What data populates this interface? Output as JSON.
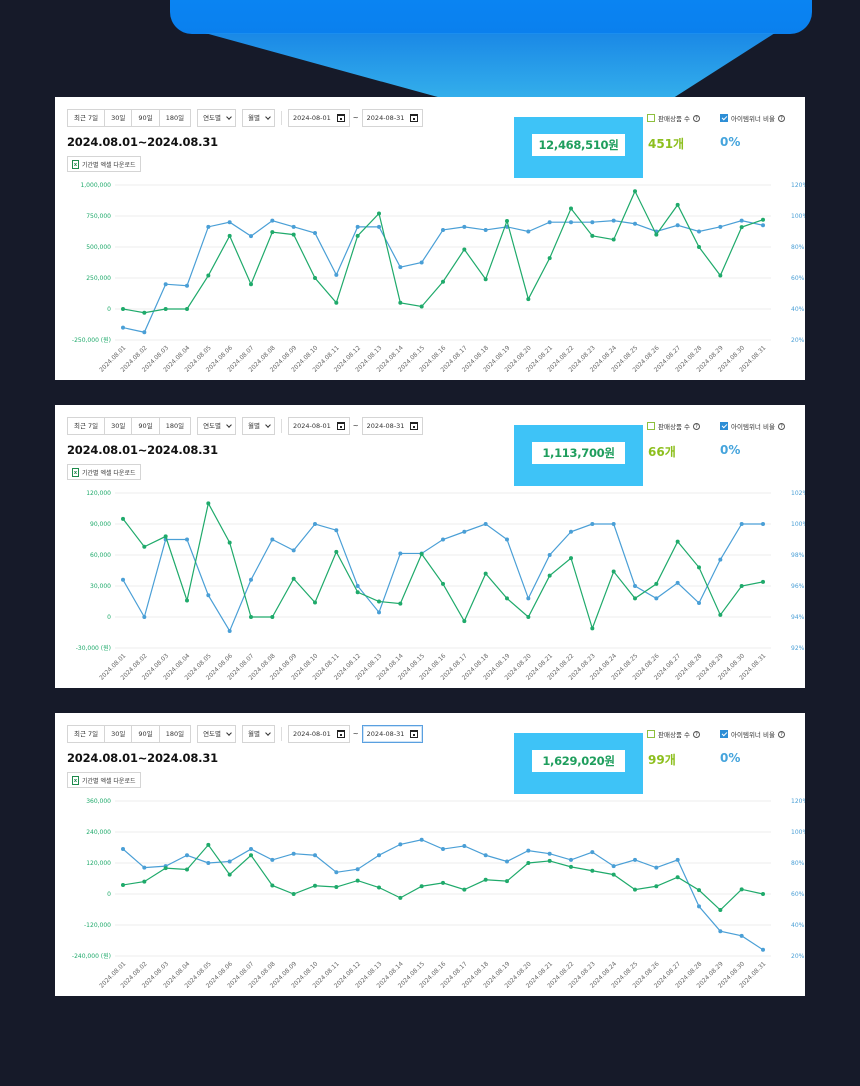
{
  "colors": {
    "sales": "#1faa6b",
    "ratio": "#4a9fd6",
    "background": "#161a29",
    "banner": "#0a86f5",
    "highlight": "#3ec3f7"
  },
  "panels": [
    {
      "toolbar": {
        "ranges": [
          "최근 7일",
          "30일",
          "90일",
          "180일"
        ],
        "year_select": "연도별",
        "month_select": "월별",
        "date_from": "2024-08-01",
        "date_to": "2024-08-31",
        "tilde": "~"
      },
      "period_title": "2024.08.01~2024.08.31",
      "excel_label": "기간별 엑셀 다운로드",
      "excel_icon_text": "x",
      "legend": {
        "sales_count_label": "판매상품 수",
        "item_winner_label": "아이템위너 비율"
      },
      "total_amount": "12,468,510원",
      "count": "451개",
      "ratio": "0%",
      "chart_data": {
        "type": "line",
        "x": [
          "2024.08.01",
          "2024.08.02",
          "2024.08.03",
          "2024.08.04",
          "2024.08.05",
          "2024.08.06",
          "2024.08.07",
          "2024.08.08",
          "2024.08.09",
          "2024.08.10",
          "2024.08.11",
          "2024.08.12",
          "2024.08.13",
          "2024.08.14",
          "2024.08.15",
          "2024.08.16",
          "2024.08.17",
          "2024.08.18",
          "2024.08.19",
          "2024.08.20",
          "2024.08.21",
          "2024.08.22",
          "2024.08.23",
          "2024.08.24",
          "2024.08.25",
          "2024.08.26",
          "2024.08.27",
          "2024.08.28",
          "2024.08.29",
          "2024.08.30",
          "2024.08.31"
        ],
        "left_ticks": [
          "1,000,000",
          "750,000",
          "500,000",
          "250,000",
          "0",
          "-250,000 (원)"
        ],
        "right_ticks": [
          "120%",
          "100%",
          "80%",
          "60%",
          "40%",
          "20%"
        ],
        "ylim": [
          -250000,
          1000000
        ],
        "y2lim": [
          20,
          120
        ],
        "series": [
          {
            "axis": "left",
            "color": "#1faa6b",
            "values": [
              0,
              -30000,
              0,
              0,
              270000,
              590000,
              200000,
              620000,
              600000,
              250000,
              50000,
              590000,
              770000,
              50000,
              20000,
              220000,
              480000,
              240000,
              710000,
              80000,
              410000,
              810000,
              590000,
              560000,
              950000,
              600000,
              840000,
              500000,
              270000,
              660000,
              720000
            ]
          },
          {
            "axis": "right",
            "color": "#4a9fd6",
            "values": [
              28,
              25,
              56,
              55,
              93,
              96,
              87,
              97,
              93,
              89,
              62,
              93,
              93,
              67,
              70,
              91,
              93,
              91,
              93,
              90,
              96,
              96,
              96,
              97,
              95,
              90,
              94,
              90,
              93,
              97,
              94
            ]
          }
        ]
      }
    },
    {
      "toolbar": {
        "ranges": [
          "최근 7일",
          "30일",
          "90일",
          "180일"
        ],
        "year_select": "연도별",
        "month_select": "월별",
        "date_from": "2024-08-01",
        "date_to": "2024-08-31",
        "tilde": "~"
      },
      "period_title": "2024.08.01~2024.08.31",
      "excel_label": "기간별 엑셀 다운로드",
      "excel_icon_text": "x",
      "legend": {
        "sales_count_label": "판매상품 수",
        "item_winner_label": "아이템위너 비율"
      },
      "total_amount": "1,113,700원",
      "count": "66개",
      "ratio": "0%",
      "chart_data": {
        "type": "line",
        "x": [
          "2024.08.01",
          "2024.08.02",
          "2024.08.03",
          "2024.08.04",
          "2024.08.05",
          "2024.08.06",
          "2024.08.07",
          "2024.08.08",
          "2024.08.09",
          "2024.08.10",
          "2024.08.11",
          "2024.08.12",
          "2024.08.13",
          "2024.08.14",
          "2024.08.15",
          "2024.08.16",
          "2024.08.17",
          "2024.08.18",
          "2024.08.19",
          "2024.08.20",
          "2024.08.21",
          "2024.08.22",
          "2024.08.23",
          "2024.08.24",
          "2024.08.25",
          "2024.08.26",
          "2024.08.27",
          "2024.08.28",
          "2024.08.29",
          "2024.08.30",
          "2024.08.31"
        ],
        "left_ticks": [
          "120,000",
          "90,000",
          "60,000",
          "30,000",
          "0",
          "-30,000 (원)"
        ],
        "right_ticks": [
          "102%",
          "100%",
          "98%",
          "96%",
          "94%",
          "92%"
        ],
        "ylim": [
          -30000,
          120000
        ],
        "y2lim": [
          92,
          102
        ],
        "series": [
          {
            "axis": "left",
            "color": "#1faa6b",
            "values": [
              95000,
              68000,
              78000,
              16000,
              110000,
              72000,
              0,
              0,
              37000,
              14000,
              63000,
              24000,
              15000,
              13000,
              61000,
              32000,
              -4000,
              42000,
              18000,
              0,
              40000,
              57000,
              -11000,
              44000,
              18000,
              32000,
              73000,
              48000,
              2000,
              30000,
              34000
            ]
          },
          {
            "axis": "right",
            "color": "#4a9fd6",
            "values": [
              96.4,
              94.0,
              99.0,
              99.0,
              95.4,
              93.1,
              96.4,
              99.0,
              98.3,
              100.0,
              99.6,
              96.0,
              94.3,
              98.1,
              98.1,
              99.0,
              99.5,
              100.0,
              99.0,
              95.2,
              98.0,
              99.5,
              100.0,
              100.0,
              96.0,
              95.2,
              96.2,
              94.9,
              97.7,
              100.0,
              100.0
            ]
          }
        ]
      }
    },
    {
      "toolbar": {
        "ranges": [
          "최근 7일",
          "30일",
          "90일",
          "180일"
        ],
        "year_select": "연도별",
        "month_select": "월별",
        "date_from": "2024-08-01",
        "date_to": "2024-08-31",
        "tilde": "~"
      },
      "period_title": "2024.08.01~2024.08.31",
      "excel_label": "기간별 엑셀 다운로드",
      "excel_icon_text": "x",
      "legend": {
        "sales_count_label": "판매상품 수",
        "item_winner_label": "아이템위너 비율"
      },
      "total_amount": "1,629,020원",
      "count": "99개",
      "ratio": "0%",
      "chart_data": {
        "type": "line",
        "x": [
          "2024.08.01",
          "2024.08.02",
          "2024.08.03",
          "2024.08.04",
          "2024.08.05",
          "2024.08.06",
          "2024.08.07",
          "2024.08.08",
          "2024.08.09",
          "2024.08.10",
          "2024.08.11",
          "2024.08.12",
          "2024.08.13",
          "2024.08.14",
          "2024.08.15",
          "2024.08.16",
          "2024.08.17",
          "2024.08.18",
          "2024.08.19",
          "2024.08.20",
          "2024.08.21",
          "2024.08.22",
          "2024.08.23",
          "2024.08.24",
          "2024.08.25",
          "2024.08.26",
          "2024.08.27",
          "2024.08.28",
          "2024.08.29",
          "2024.08.30",
          "2024.08.31"
        ],
        "left_ticks": [
          "360,000",
          "240,000",
          "120,000",
          "0",
          "-120,000",
          "-240,000 (원)"
        ],
        "right_ticks": [
          "120%",
          "100%",
          "80%",
          "60%",
          "40%",
          "20%"
        ],
        "ylim": [
          -240000,
          360000
        ],
        "y2lim": [
          20,
          120
        ],
        "series": [
          {
            "axis": "left",
            "color": "#1faa6b",
            "values": [
              35000,
              48000,
              100000,
              95000,
              190000,
              75000,
              150000,
              33000,
              0,
              32000,
              27000,
              52000,
              25000,
              -15000,
              30000,
              43000,
              17000,
              55000,
              50000,
              120000,
              128000,
              105000,
              90000,
              75000,
              17000,
              30000,
              65000,
              15000,
              -62000,
              18000,
              0
            ]
          },
          {
            "axis": "right",
            "color": "#4a9fd6",
            "values": [
              89,
              77,
              78,
              85,
              80,
              81,
              89,
              82,
              86,
              85,
              74,
              76,
              85,
              92,
              95,
              89,
              91,
              85,
              81,
              88,
              86,
              82,
              87,
              78,
              82,
              77,
              82,
              52,
              36,
              33,
              24
            ]
          }
        ]
      }
    }
  ]
}
